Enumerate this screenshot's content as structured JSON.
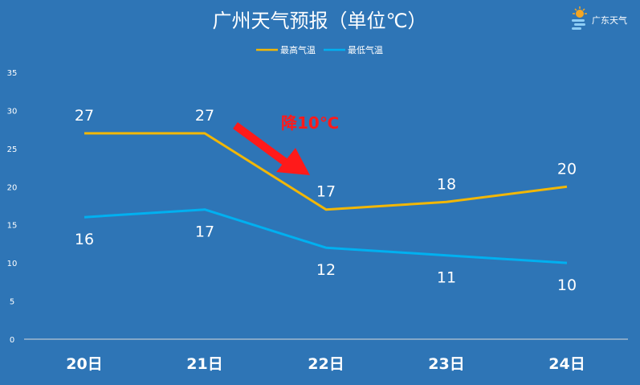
{
  "logo": {
    "text": "广东天气",
    "icon": "sun-cloud-icon"
  },
  "chart_data": {
    "type": "line",
    "title": "广州天气预报（单位℃）",
    "categories": [
      "20日",
      "21日",
      "22日",
      "23日",
      "24日"
    ],
    "series": [
      {
        "name": "最高气温",
        "values": [
          27,
          27,
          17,
          18,
          20
        ],
        "color": "#f2b705"
      },
      {
        "name": "最低气温",
        "values": [
          16,
          17,
          12,
          11,
          10
        ],
        "color": "#00b0f0"
      }
    ],
    "ylim": [
      0,
      35
    ],
    "yticks": [
      "0",
      "5",
      "10",
      "15",
      "20",
      "25",
      "30",
      "35"
    ],
    "grid": false,
    "legend": "top-center",
    "annotation": {
      "text": "降10℃",
      "color": "#ff1a1a"
    }
  }
}
